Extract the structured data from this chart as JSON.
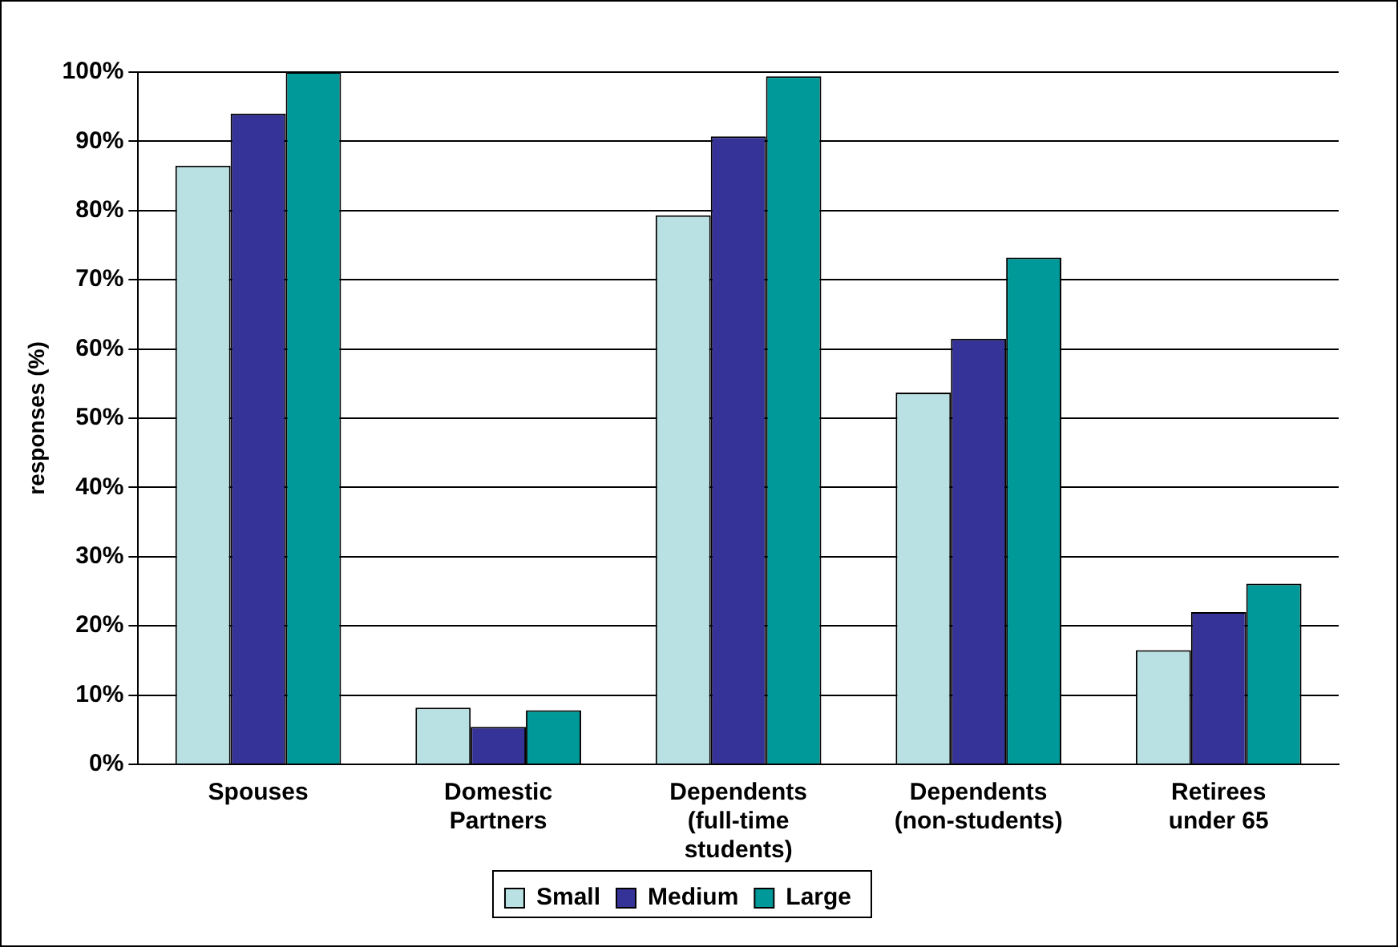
{
  "chart_data": {
    "type": "bar",
    "ylabel": "responses (%)",
    "categories": [
      "Spouses",
      "Domestic\nPartners",
      "Dependents\n(full-time\nstudents)",
      "Dependents\n(non-students)",
      "Retirees\nunder 65"
    ],
    "series": [
      {
        "name": "Small",
        "color": "#b9e0e3",
        "values": [
          86.5,
          8.2,
          79.3,
          53.7,
          16.5
        ]
      },
      {
        "name": "Medium",
        "color": "#363398",
        "values": [
          94.0,
          5.4,
          90.7,
          61.5,
          22.0
        ]
      },
      {
        "name": "Large",
        "color": "#009999",
        "values": [
          100,
          7.8,
          99.4,
          73.2,
          26.1
        ]
      }
    ],
    "ylim": [
      0,
      100
    ],
    "yticks": [
      {
        "value": 0,
        "label": "0%"
      },
      {
        "value": 10,
        "label": "10%"
      },
      {
        "value": 20,
        "label": "20%"
      },
      {
        "value": 30,
        "label": "30%"
      },
      {
        "value": 40,
        "label": "40%"
      },
      {
        "value": 50,
        "label": "50%"
      },
      {
        "value": 60,
        "label": "60%"
      },
      {
        "value": 70,
        "label": "70%"
      },
      {
        "value": 80,
        "label": "80%"
      },
      {
        "value": 90,
        "label": "90%"
      },
      {
        "value": 100,
        "label": "100%"
      }
    ],
    "grid": "y",
    "legend": "bottom"
  }
}
